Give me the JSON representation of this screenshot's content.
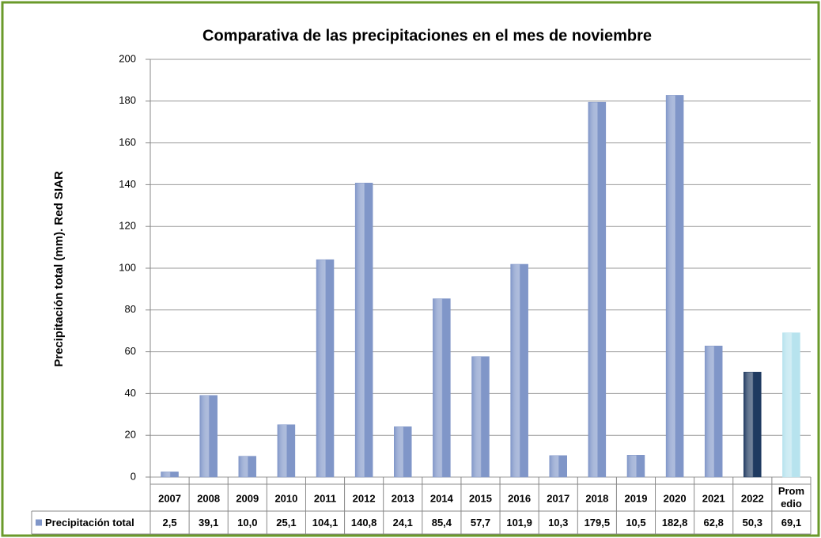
{
  "chart_data": {
    "type": "bar",
    "title": "Comparativa de las precipitaciones en el mes de noviembre",
    "y_label": "Precipitación total (mm). Red SIAR",
    "categories": [
      "2007",
      "2008",
      "2009",
      "2010",
      "2011",
      "2012",
      "2013",
      "2014",
      "2015",
      "2016",
      "2017",
      "2018",
      "2019",
      "2020",
      "2021",
      "2022",
      "Promedio"
    ],
    "series": [
      {
        "name": "Precipitación total",
        "color": "#8096c8",
        "colors": [
          "#8096c8",
          "#8096c8",
          "#8096c8",
          "#8096c8",
          "#8096c8",
          "#8096c8",
          "#8096c8",
          "#8096c8",
          "#8096c8",
          "#8096c8",
          "#8096c8",
          "#8096c8",
          "#8096c8",
          "#8096c8",
          "#8096c8",
          "#1f3a60",
          "#b7e3ee"
        ],
        "values": [
          2.5,
          39.1,
          10.0,
          25.1,
          104.1,
          140.8,
          24.1,
          85.4,
          57.7,
          101.9,
          10.3,
          179.5,
          10.5,
          182.8,
          62.8,
          50.3,
          69.1
        ],
        "value_labels": [
          "2,5",
          "39,1",
          "10,0",
          "25,1",
          "104,1",
          "140,8",
          "24,1",
          "85,4",
          "57,7",
          "101,9",
          "10,3",
          "179,5",
          "10,5",
          "182,8",
          "62,8",
          "50,3",
          "69,1"
        ]
      }
    ],
    "ylim": [
      0,
      200
    ],
    "yticks": [
      0,
      20,
      40,
      60,
      80,
      100,
      120,
      140,
      160,
      180,
      200
    ],
    "grid": true
  }
}
